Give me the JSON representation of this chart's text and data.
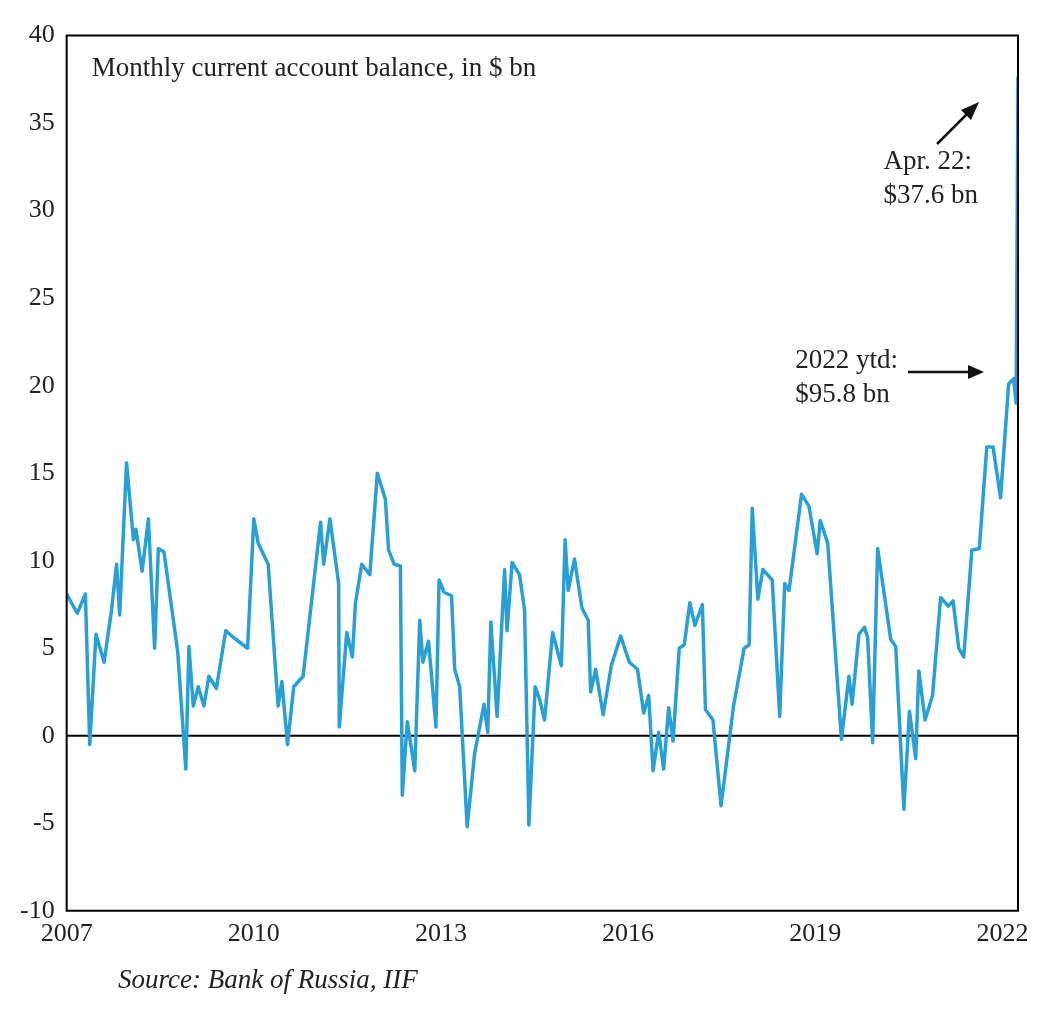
{
  "chart_data": {
    "type": "line",
    "title": "Monthly current account balance, in $ bn",
    "x": [
      2007.0,
      2007.17,
      2007.3,
      2007.37,
      2007.47,
      2007.6,
      2007.72,
      2007.8,
      2007.85,
      2007.96,
      2008.07,
      2008.11,
      2008.21,
      2008.31,
      2008.41,
      2008.47,
      2008.56,
      2008.78,
      2008.91,
      2008.96,
      2009.03,
      2009.11,
      2009.2,
      2009.28,
      2009.4,
      2009.55,
      2009.68,
      2009.9,
      2010.0,
      2010.07,
      2010.23,
      2010.39,
      2010.45,
      2010.54,
      2010.64,
      2010.79,
      2011.07,
      2011.12,
      2011.22,
      2011.36,
      2011.37,
      2011.49,
      2011.58,
      2011.63,
      2011.73,
      2011.86,
      2011.98,
      2012.11,
      2012.16,
      2012.25,
      2012.35,
      2012.38,
      2012.46,
      2012.58,
      2012.66,
      2012.71,
      2012.8,
      2012.92,
      2012.97,
      2013.05,
      2013.17,
      2013.22,
      2013.3,
      2013.42,
      2013.54,
      2013.69,
      2013.75,
      2013.8,
      2013.9,
      2014.02,
      2014.06,
      2014.14,
      2014.26,
      2014.34,
      2014.41,
      2014.51,
      2014.58,
      2014.66,
      2014.79,
      2014.93,
      2014.99,
      2015.04,
      2015.14,
      2015.26,
      2015.36,
      2015.4,
      2015.48,
      2015.6,
      2015.73,
      2015.88,
      2016.02,
      2016.15,
      2016.25,
      2016.33,
      2016.4,
      2016.49,
      2016.57,
      2016.65,
      2016.72,
      2016.82,
      2016.9,
      2016.99,
      2017.07,
      2017.19,
      2017.24,
      2017.36,
      2017.49,
      2017.69,
      2017.86,
      2017.94,
      2017.99,
      2018.08,
      2018.16,
      2018.31,
      2018.43,
      2018.51,
      2018.58,
      2018.78,
      2018.9,
      2019.03,
      2019.08,
      2019.2,
      2019.42,
      2019.54,
      2019.59,
      2019.7,
      2019.79,
      2019.84,
      2019.92,
      2020.0,
      2020.21,
      2020.29,
      2020.42,
      2020.51,
      2020.61,
      2020.66,
      2020.76,
      2020.88,
      2021.01,
      2021.13,
      2021.21,
      2021.3,
      2021.38,
      2021.51,
      2021.63,
      2021.75,
      2021.85,
      2021.97,
      2022.1,
      2022.18,
      2022.22,
      2022.25
    ],
    "series": [
      {
        "color": "#2a9fd6",
        "values": [
          8.1,
          7.0,
          8.1,
          -0.5,
          5.8,
          4.2,
          7.2,
          9.8,
          6.9,
          15.6,
          11.2,
          11.8,
          9.4,
          12.4,
          5.0,
          10.7,
          10.5,
          4.8,
          -1.9,
          5.1,
          1.7,
          2.8,
          1.7,
          3.4,
          2.7,
          6.0,
          5.6,
          5.0,
          12.4,
          11.0,
          9.8,
          1.7,
          3.1,
          -0.5,
          2.8,
          3.4,
          12.2,
          9.8,
          12.4,
          8.7,
          0.5,
          5.9,
          4.5,
          7.6,
          9.8,
          9.2,
          15.0,
          13.5,
          10.6,
          9.8,
          9.7,
          -3.4,
          0.8,
          -2.0,
          6.6,
          4.2,
          5.4,
          0.5,
          8.9,
          8.2,
          8.0,
          3.8,
          2.8,
          -5.2,
          -1.0,
          1.8,
          0.2,
          6.5,
          1.1,
          9.5,
          6.0,
          9.9,
          9.2,
          7.2,
          -5.1,
          2.8,
          2.1,
          0.9,
          5.9,
          4.0,
          11.2,
          8.3,
          10.1,
          7.3,
          6.6,
          2.5,
          3.8,
          1.2,
          4.0,
          5.7,
          4.2,
          3.8,
          1.3,
          2.3,
          -2.0,
          0.2,
          -1.9,
          1.6,
          -0.3,
          5.0,
          5.2,
          7.6,
          6.3,
          7.5,
          1.5,
          0.9,
          -4.0,
          1.7,
          5.0,
          5.2,
          13.0,
          7.8,
          9.5,
          8.9,
          1.1,
          8.7,
          8.3,
          13.8,
          13.1,
          10.4,
          12.3,
          11.0,
          -0.2,
          3.4,
          1.8,
          5.8,
          6.2,
          5.6,
          -0.4,
          10.7,
          5.5,
          5.1,
          -4.2,
          1.4,
          -1.3,
          3.7,
          0.9,
          2.3,
          7.9,
          7.4,
          7.7,
          5.0,
          4.5,
          10.6,
          10.7,
          16.5,
          16.5,
          13.6,
          20.1,
          20.4,
          19.0,
          37.6
        ]
      }
    ],
    "xlim": [
      2007,
      2022.25
    ],
    "xticks": [
      2007,
      2010,
      2013,
      2016,
      2019,
      2022
    ],
    "ylim": [
      -10,
      40
    ],
    "yticks": [
      -10,
      -5,
      0,
      5,
      10,
      15,
      20,
      25,
      30,
      35,
      40
    ],
    "grid": false,
    "legend": false,
    "marker": "none",
    "line_style": "solid",
    "ref_lines": [
      {
        "axis": "y",
        "value": 0,
        "color": "#000000"
      }
    ],
    "annotations": [
      {
        "text": "Apr. 22: $37.6 bn",
        "x": 2022.25,
        "y": 37.6
      },
      "2022 ytd: $95.8 bn",
      "Source: Bank of Russia, IIF"
    ]
  }
}
